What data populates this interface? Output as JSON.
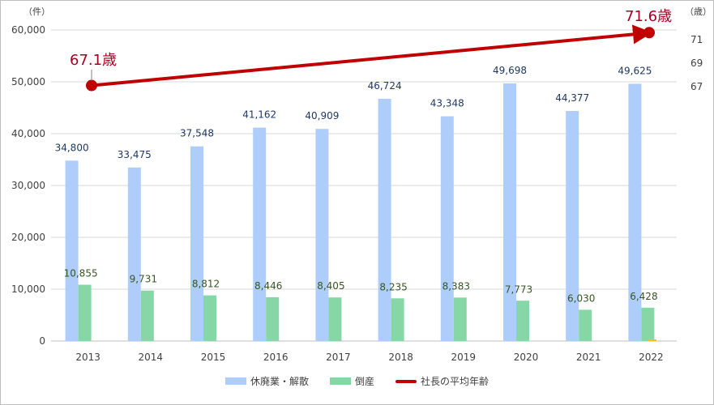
{
  "chart_data": {
    "type": "bar",
    "categories": [
      "2013",
      "2014",
      "2015",
      "2016",
      "2017",
      "2018",
      "2019",
      "2020",
      "2021",
      "2022"
    ],
    "series": [
      {
        "name": "休廃業・解散",
        "type": "bar",
        "color": "#afcdfb",
        "values": [
          34800,
          33475,
          37548,
          41162,
          40909,
          46724,
          43348,
          49698,
          44377,
          49625
        ],
        "labels": [
          "34,800",
          "33,475",
          "37,548",
          "41,162",
          "40,909",
          "46,724",
          "43,348",
          "49,698",
          "44,377",
          "49,625"
        ]
      },
      {
        "name": "倒産",
        "type": "bar",
        "color": "#86d7a5",
        "values": [
          10855,
          9731,
          8812,
          8446,
          8405,
          8235,
          8383,
          7773,
          6030,
          6428
        ],
        "labels": [
          "10,855",
          "9,731",
          "8,812",
          "8,446",
          "8,405",
          "8,235",
          "8,383",
          "7,773",
          "6,030",
          "6,428"
        ]
      },
      {
        "name": "社長の平均年齢",
        "type": "line",
        "color": "#c00000",
        "points": [
          {
            "x": "2013",
            "y": 67.1
          },
          {
            "x": "2022",
            "y": 71.6
          }
        ]
      }
    ],
    "point_labels": [
      "67.1歳",
      "71.6歳"
    ],
    "left_axis": {
      "unit": "（件）",
      "range": [
        0,
        60000
      ],
      "ticks": [
        "0",
        "10,000",
        "20,000",
        "30,000",
        "40,000",
        "50,000",
        "60,000"
      ]
    },
    "right_axis": {
      "unit": "（歳）",
      "ticks": [
        "67",
        "69",
        "71"
      ],
      "tick_values": [
        67,
        69,
        71
      ]
    },
    "grid": true,
    "legend_position": "bottom"
  }
}
